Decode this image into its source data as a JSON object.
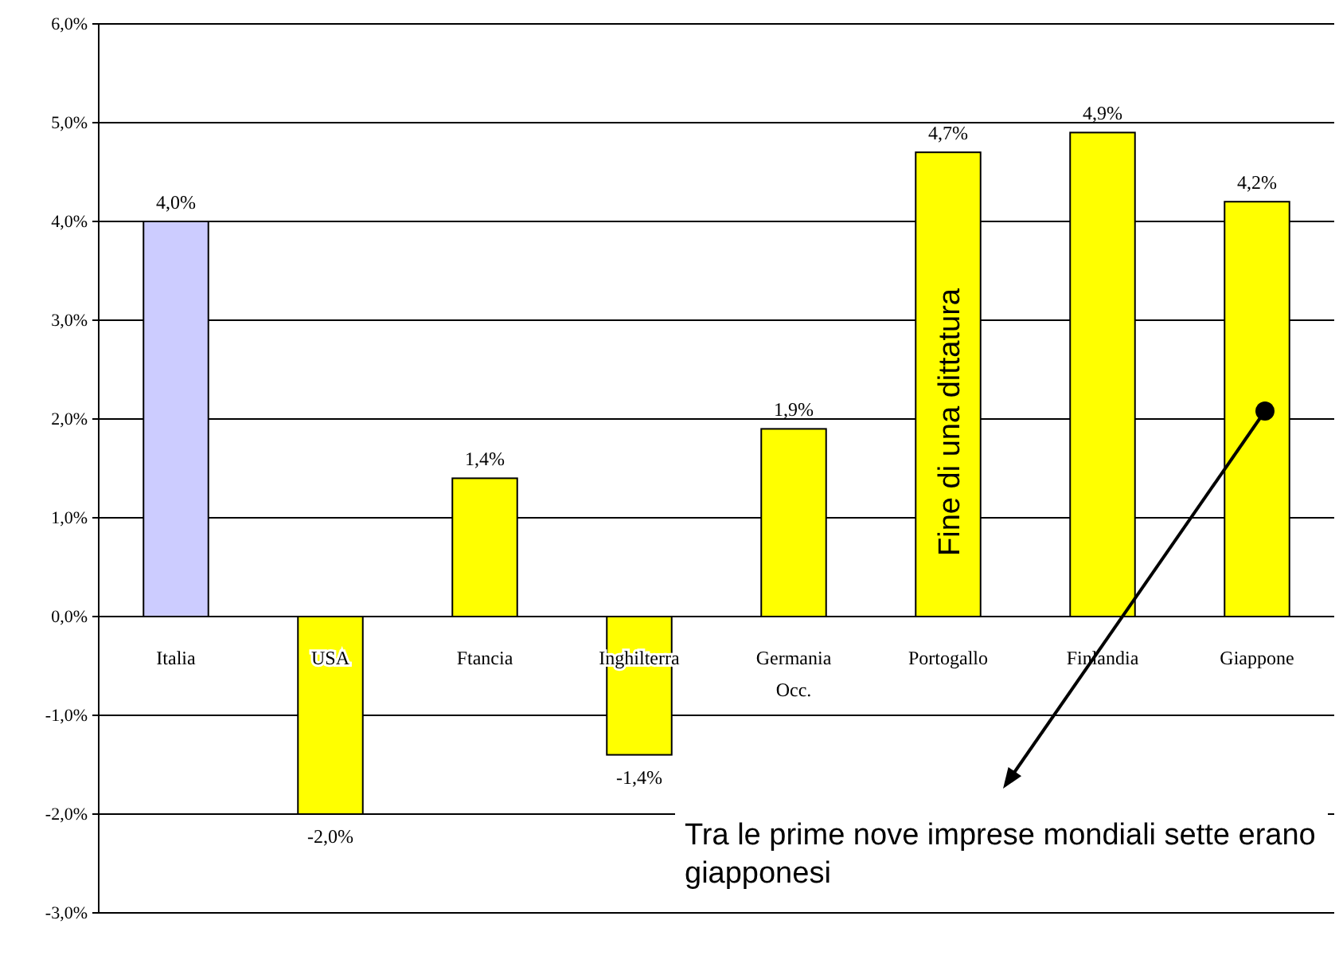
{
  "chart_data": {
    "type": "bar",
    "categories": [
      "Italia",
      "USA",
      "Ftancia",
      "Inghilterra",
      "Germania Occ.",
      "Portogallo",
      "Finlandia",
      "Giappone"
    ],
    "values": [
      4.0,
      -2.0,
      1.4,
      -1.4,
      1.9,
      4.7,
      4.9,
      4.2
    ],
    "colors": [
      "#ccccff",
      "#ffff00",
      "#ffff00",
      "#ffff00",
      "#ffff00",
      "#ffff00",
      "#ffff00",
      "#ffff00"
    ],
    "value_labels": [
      "4,0%",
      "-2,0%",
      "1,4%",
      "-1,4%",
      "1,9%",
      "4,7%",
      "4,9%",
      "4,2%"
    ],
    "ylim": [
      -3,
      6
    ],
    "yticks": [
      {
        "value": -3,
        "label": "-3,0%"
      },
      {
        "value": -2,
        "label": "-2,0%"
      },
      {
        "value": -1,
        "label": "-1,0%"
      },
      {
        "value": 0,
        "label": "0,0%"
      },
      {
        "value": 1,
        "label": "1,0%"
      },
      {
        "value": 2,
        "label": "2,0%"
      },
      {
        "value": 3,
        "label": "3,0%"
      },
      {
        "value": 4,
        "label": "4,0%"
      },
      {
        "value": 5,
        "label": "5,0%"
      },
      {
        "value": 6,
        "label": "6,0%"
      }
    ],
    "grid": "y",
    "annotations": [
      "Fine di una dittatura",
      "Tra le prime nove imprese mondiali sette erano giapponesi"
    ]
  }
}
